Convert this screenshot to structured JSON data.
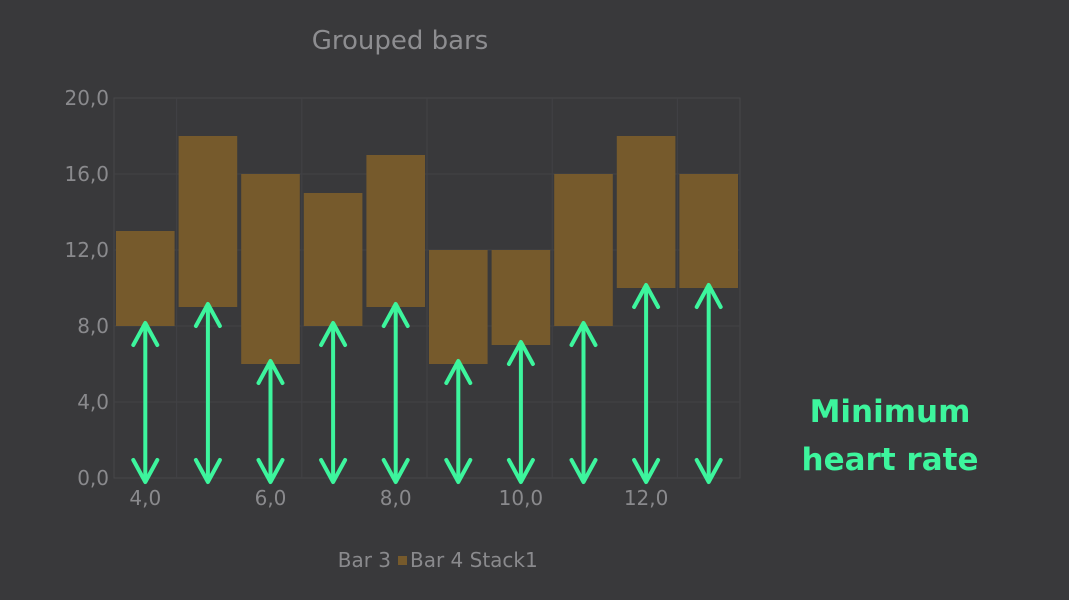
{
  "chart_data": {
    "type": "bar",
    "title": "Grouped bars",
    "xlabel": "",
    "ylabel": "",
    "x": [
      4,
      5,
      6,
      7,
      8,
      9,
      10,
      11,
      12,
      13
    ],
    "series": [
      {
        "name": "Bar 3",
        "values": [
          8,
          9,
          6,
          8,
          9,
          6,
          7,
          8,
          10,
          10
        ]
      },
      {
        "name": "Bar 4 Stack1",
        "values": [
          5,
          9,
          10,
          7,
          8,
          6,
          5,
          8,
          8,
          6
        ],
        "color": "#765a2c"
      }
    ],
    "ylim": [
      0,
      20
    ],
    "yticks": [
      "0,0",
      "4,0",
      "8,0",
      "12,0",
      "16,0",
      "20,0"
    ],
    "xticks": [
      "4,0",
      "6,0",
      "8,0",
      "10,0",
      "12,0"
    ],
    "xtick_values": [
      4,
      6,
      8,
      10,
      12
    ],
    "grid": true,
    "legend_position": "bottom"
  },
  "annotation": {
    "line1": "Minimum",
    "line2": "heart rate",
    "color": "#3df59d"
  },
  "colors": {
    "background": "#39393b",
    "axis_text": "#8a8a8d",
    "title_text": "#8d8d90",
    "bar": "#765a2c",
    "arrow": "#3df59d"
  }
}
